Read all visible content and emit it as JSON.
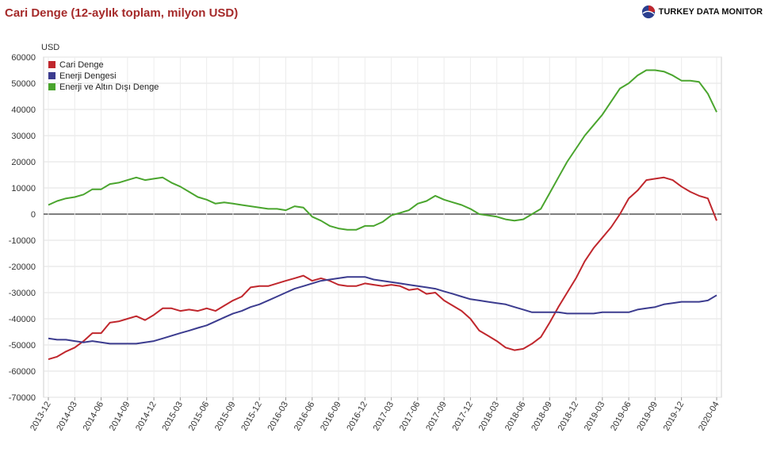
{
  "header": {
    "title": "Cari Denge (12-aylık toplam, milyon USD)",
    "brand": "TURKEY DATA MONITOR"
  },
  "chart_data": {
    "type": "line",
    "title": "Cari Denge (12-aylık toplam, milyon USD)",
    "ylabel": "USD",
    "xlabel": "",
    "ylim": [
      -70000,
      60000
    ],
    "yticks": [
      60000,
      50000,
      40000,
      30000,
      20000,
      10000,
      0,
      -10000,
      -20000,
      -30000,
      -40000,
      -50000,
      -60000,
      -70000
    ],
    "grid": true,
    "legend_position": "top-left",
    "x_tick_labels": [
      "2013-12",
      "2014-03",
      "2014-06",
      "2014-09",
      "2014-12",
      "2015-03",
      "2015-06",
      "2015-09",
      "2015-12",
      "2016-03",
      "2016-06",
      "2016-09",
      "2016-12",
      "2017-03",
      "2017-06",
      "2017-09",
      "2017-12",
      "2018-03",
      "2018-06",
      "2018-09",
      "2018-12",
      "2019-03",
      "2019-06",
      "2019-09",
      "2019-12",
      "2020-04"
    ],
    "x": [
      "2013-12",
      "2014-01",
      "2014-02",
      "2014-03",
      "2014-04",
      "2014-05",
      "2014-06",
      "2014-07",
      "2014-08",
      "2014-09",
      "2014-10",
      "2014-11",
      "2014-12",
      "2015-01",
      "2015-02",
      "2015-03",
      "2015-04",
      "2015-05",
      "2015-06",
      "2015-07",
      "2015-08",
      "2015-09",
      "2015-10",
      "2015-11",
      "2015-12",
      "2016-01",
      "2016-02",
      "2016-03",
      "2016-04",
      "2016-05",
      "2016-06",
      "2016-07",
      "2016-08",
      "2016-09",
      "2016-10",
      "2016-11",
      "2016-12",
      "2017-01",
      "2017-02",
      "2017-03",
      "2017-04",
      "2017-05",
      "2017-06",
      "2017-07",
      "2017-08",
      "2017-09",
      "2017-10",
      "2017-11",
      "2017-12",
      "2018-01",
      "2018-02",
      "2018-03",
      "2018-04",
      "2018-05",
      "2018-06",
      "2018-07",
      "2018-08",
      "2018-09",
      "2018-10",
      "2018-11",
      "2018-12",
      "2019-01",
      "2019-02",
      "2019-03",
      "2019-04",
      "2019-05",
      "2019-06",
      "2019-07",
      "2019-08",
      "2019-09",
      "2019-10",
      "2019-11",
      "2019-12",
      "2020-01",
      "2020-02",
      "2020-03",
      "2020-04"
    ],
    "series": [
      {
        "name": "Cari Denge",
        "color": "#c0272d",
        "values": [
          -55500,
          -54500,
          -52500,
          -51000,
          -48500,
          -45500,
          -45500,
          -41500,
          -41000,
          -40000,
          -39000,
          -40500,
          -38500,
          -36000,
          -36000,
          -37000,
          -36500,
          -37000,
          -36000,
          -37000,
          -35000,
          -33000,
          -31500,
          -28000,
          -27500,
          -27500,
          -26500,
          -25500,
          -24500,
          -23500,
          -25500,
          -24500,
          -25500,
          -27000,
          -27500,
          -27500,
          -26500,
          -27000,
          -27500,
          -27000,
          -27500,
          -29000,
          -28500,
          -30500,
          -30000,
          -33000,
          -35000,
          -37000,
          -40000,
          -44500,
          -46500,
          -48500,
          -51000,
          -52000,
          -51500,
          -49500,
          -47000,
          -41500,
          -35500,
          -30000,
          -24500,
          -18000,
          -13000,
          -9000,
          -5000,
          0,
          6000,
          9000,
          13000,
          13500,
          14000,
          13000,
          10500,
          8500,
          7000,
          6000,
          -2500
        ]
      },
      {
        "name": "Enerji Dengesi",
        "color": "#3c3c8f",
        "values": [
          -47500,
          -48000,
          -48000,
          -48500,
          -49000,
          -48500,
          -49000,
          -49500,
          -49500,
          -49500,
          -49500,
          -49000,
          -48500,
          -47500,
          -46500,
          -45500,
          -44500,
          -43500,
          -42500,
          -41000,
          -39500,
          -38000,
          -37000,
          -35500,
          -34500,
          -33000,
          -31500,
          -30000,
          -28500,
          -27500,
          -26500,
          -25500,
          -25000,
          -24500,
          -24000,
          -24000,
          -24000,
          -25000,
          -25500,
          -26000,
          -26500,
          -27000,
          -27500,
          -28000,
          -28500,
          -29500,
          -30500,
          -31500,
          -32500,
          -33000,
          -33500,
          -34000,
          -34500,
          -35500,
          -36500,
          -37500,
          -37500,
          -37500,
          -37500,
          -38000,
          -38000,
          -38000,
          -38000,
          -37500,
          -37500,
          -37500,
          -37500,
          -36500,
          -36000,
          -35500,
          -34500,
          -34000,
          -33500,
          -33500,
          -33500,
          -33000,
          -31000
        ]
      },
      {
        "name": "Enerji ve Altın Dışı Denge",
        "color": "#4aa52e",
        "values": [
          3500,
          5000,
          6000,
          6500,
          7500,
          9500,
          9500,
          11500,
          12000,
          13000,
          14000,
          13000,
          13500,
          14000,
          12000,
          10500,
          8500,
          6500,
          5500,
          4000,
          4500,
          4000,
          3500,
          3000,
          2500,
          2000,
          2000,
          1500,
          3000,
          2500,
          -1000,
          -2500,
          -4500,
          -5500,
          -6000,
          -6000,
          -4500,
          -4500,
          -3000,
          -500,
          500,
          1500,
          4000,
          5000,
          7000,
          5500,
          4500,
          3500,
          2000,
          0,
          -500,
          -1000,
          -2000,
          -2500,
          -2000,
          0,
          2000,
          8000,
          14000,
          20000,
          25000,
          30000,
          34000,
          38000,
          43000,
          48000,
          50000,
          53000,
          55000,
          55000,
          54500,
          53000,
          51000,
          51000,
          50500,
          46000,
          39000
        ]
      }
    ]
  }
}
